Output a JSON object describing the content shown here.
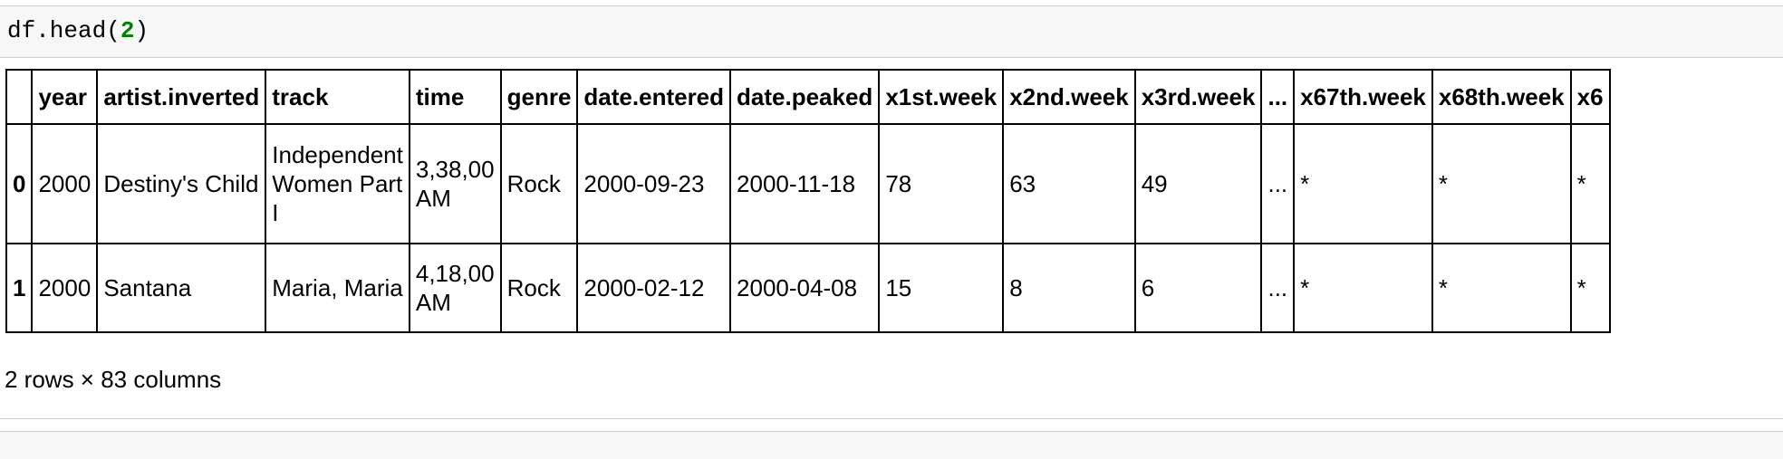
{
  "input": {
    "code_prefix": "df.head(",
    "code_arg": "2",
    "code_suffix": ")"
  },
  "table": {
    "columns": [
      "",
      "year",
      "artist.inverted",
      "track",
      "time",
      "genre",
      "date.entered",
      "date.peaked",
      "x1st.week",
      "x2nd.week",
      "x3rd.week",
      "...",
      "x67th.week",
      "x68th.week",
      "x6"
    ],
    "rows": [
      [
        "0",
        "2000",
        "Destiny's Child",
        "Independent Women Part I",
        "3,38,00 AM",
        "Rock",
        "2000-09-23",
        "2000-11-18",
        "78",
        "63",
        "49",
        "...",
        "*",
        "*",
        "*"
      ],
      [
        "1",
        "2000",
        "Santana",
        "Maria, Maria",
        "4,18,00 AM",
        "Rock",
        "2000-02-12",
        "2000-04-08",
        "15",
        "8",
        "6",
        "...",
        "*",
        "*",
        "*"
      ]
    ]
  },
  "summary": "2 rows × 83 columns"
}
